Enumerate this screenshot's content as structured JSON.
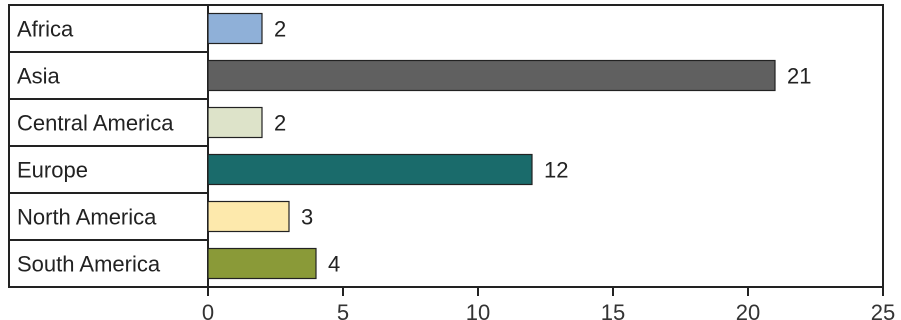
{
  "chart_data": {
    "type": "bar",
    "orientation": "horizontal",
    "title": "",
    "xlabel": "",
    "ylabel": "",
    "categories": [
      "Africa",
      "Asia",
      "Central America",
      "Europe",
      "North America",
      "South America"
    ],
    "values": [
      2,
      21,
      2,
      12,
      3,
      4
    ],
    "colors": [
      "#8fb0d8",
      "#606060",
      "#dde3c9",
      "#1a6b6b",
      "#fde9ac",
      "#8a9a38"
    ],
    "xlim": [
      0,
      25
    ],
    "xticks": [
      0,
      5,
      10,
      15,
      20,
      25
    ],
    "grid": false,
    "data_labels": true
  }
}
